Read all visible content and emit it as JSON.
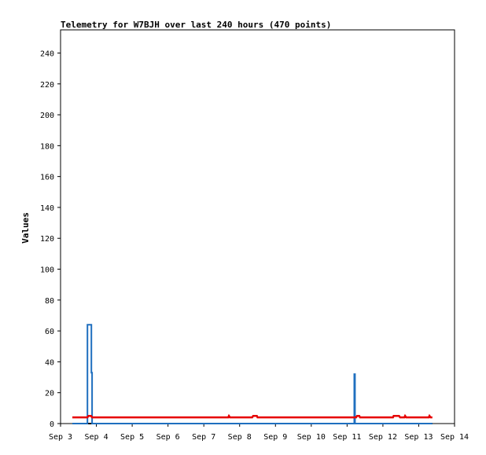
{
  "chart_data": {
    "type": "line",
    "title": "Telemetry for W7BJH over last 240 hours (470 points)",
    "xlabel": "",
    "ylabel": "Values",
    "xlim": [
      0,
      11
    ],
    "ylim": [
      0,
      255
    ],
    "x_tick_values": [
      0,
      1,
      2,
      3,
      4,
      5,
      6,
      7,
      8,
      9,
      10,
      11
    ],
    "x_tick_labels": [
      "Sep 3",
      "Sep 4",
      "Sep 5",
      "Sep 6",
      "Sep 7",
      "Sep 8",
      "Sep 9",
      "Sep 10",
      "Sep 11",
      "Sep 12",
      "Sep 13",
      "Sep 14"
    ],
    "y_ticks": [
      0,
      20,
      40,
      60,
      80,
      100,
      120,
      140,
      160,
      180,
      200,
      220,
      240
    ],
    "grid": false,
    "legend": "none",
    "series": [
      {
        "color": "#000000",
        "points": [
          [
            0.33,
            0
          ],
          [
            10.38,
            0
          ]
        ]
      },
      {
        "color": "#1f6fbf",
        "points": [
          [
            0.33,
            0
          ],
          [
            0.75,
            0
          ],
          [
            0.75,
            64
          ],
          [
            0.86,
            64
          ],
          [
            0.86,
            33
          ],
          [
            0.88,
            33
          ],
          [
            0.88,
            0
          ],
          [
            8.2,
            0
          ],
          [
            8.2,
            32
          ],
          [
            8.22,
            32
          ],
          [
            8.22,
            0
          ],
          [
            10.38,
            0
          ]
        ]
      },
      {
        "color": "#e60000",
        "points": [
          [
            0.33,
            4
          ],
          [
            0.75,
            4
          ],
          [
            0.78,
            5
          ],
          [
            0.85,
            5
          ],
          [
            0.88,
            4
          ],
          [
            4.68,
            4
          ],
          [
            4.7,
            5
          ],
          [
            4.73,
            4
          ],
          [
            5.35,
            4
          ],
          [
            5.38,
            5
          ],
          [
            5.48,
            5
          ],
          [
            5.5,
            4
          ],
          [
            8.25,
            4
          ],
          [
            8.28,
            5
          ],
          [
            8.34,
            5
          ],
          [
            8.36,
            4
          ],
          [
            9.28,
            4
          ],
          [
            9.3,
            5
          ],
          [
            9.45,
            5
          ],
          [
            9.48,
            4
          ],
          [
            9.6,
            4
          ],
          [
            9.62,
            5
          ],
          [
            9.65,
            4
          ],
          [
            10.28,
            4
          ],
          [
            10.3,
            5
          ],
          [
            10.33,
            4
          ],
          [
            10.38,
            4
          ]
        ]
      }
    ]
  }
}
